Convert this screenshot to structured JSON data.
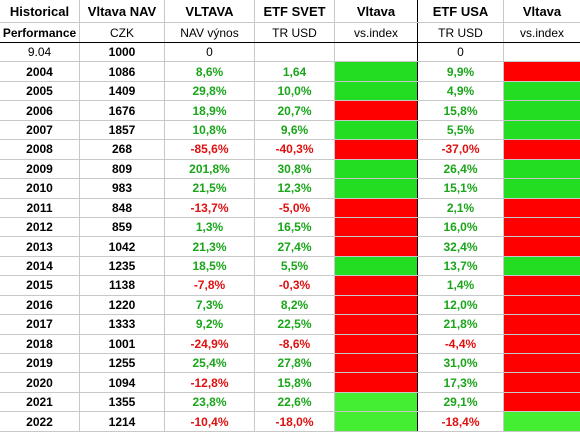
{
  "colors": {
    "positive_text": "#1aa51a",
    "negative_text": "#e01010",
    "green_fill": "#22dd22",
    "light_green_fill": "#44ee33",
    "red_fill": "#ff0000",
    "grid": "#c8c8c8"
  },
  "header": {
    "row1": [
      "Historical",
      "Vltava NAV",
      "VLTAVA",
      "ETF SVET",
      "Vltava",
      "ETF USA",
      "Vltava"
    ],
    "row2": [
      "Performance",
      "CZK",
      "NAV výnos",
      "TR USD",
      "vs.index",
      "TR USD",
      "vs.index"
    ]
  },
  "base_row": {
    "date": "9.04",
    "nav": "1000",
    "vltava": "0",
    "etf_svet": "",
    "etf_usa": "0"
  },
  "rows": [
    {
      "year": "2004",
      "nav": "1086",
      "vltava": "8,6%",
      "vltava_sign": "pos",
      "svet": "1,64",
      "svet_sign": "pos",
      "vs_svet": "green",
      "usa": "9,9%",
      "usa_sign": "pos",
      "vs_usa": "red"
    },
    {
      "year": "2005",
      "nav": "1409",
      "vltava": "29,8%",
      "vltava_sign": "pos",
      "svet": "10,0%",
      "svet_sign": "pos",
      "vs_svet": "green",
      "usa": "4,9%",
      "usa_sign": "pos",
      "vs_usa": "green"
    },
    {
      "year": "2006",
      "nav": "1676",
      "vltava": "18,9%",
      "vltava_sign": "pos",
      "svet": "20,7%",
      "svet_sign": "pos",
      "vs_svet": "red",
      "usa": "15,8%",
      "usa_sign": "pos",
      "vs_usa": "green"
    },
    {
      "year": "2007",
      "nav": "1857",
      "vltava": "10,8%",
      "vltava_sign": "pos",
      "svet": "9,6%",
      "svet_sign": "pos",
      "vs_svet": "green",
      "usa": "5,5%",
      "usa_sign": "pos",
      "vs_usa": "green"
    },
    {
      "year": "2008",
      "nav": "268",
      "vltava": "-85,6%",
      "vltava_sign": "neg",
      "svet": "-40,3%",
      "svet_sign": "neg",
      "vs_svet": "red",
      "usa": "-37,0%",
      "usa_sign": "neg",
      "vs_usa": "red"
    },
    {
      "year": "2009",
      "nav": "809",
      "vltava": "201,8%",
      "vltava_sign": "pos",
      "svet": "30,8%",
      "svet_sign": "pos",
      "vs_svet": "green",
      "usa": "26,4%",
      "usa_sign": "pos",
      "vs_usa": "green"
    },
    {
      "year": "2010",
      "nav": "983",
      "vltava": "21,5%",
      "vltava_sign": "pos",
      "svet": "12,3%",
      "svet_sign": "pos",
      "vs_svet": "green",
      "usa": "15,1%",
      "usa_sign": "pos",
      "vs_usa": "green"
    },
    {
      "year": "2011",
      "nav": "848",
      "vltava": "-13,7%",
      "vltava_sign": "neg",
      "svet": "-5,0%",
      "svet_sign": "neg",
      "vs_svet": "red",
      "usa": "2,1%",
      "usa_sign": "pos",
      "vs_usa": "red"
    },
    {
      "year": "2012",
      "nav": "859",
      "vltava": "1,3%",
      "vltava_sign": "pos",
      "svet": "16,5%",
      "svet_sign": "pos",
      "vs_svet": "red",
      "usa": "16,0%",
      "usa_sign": "pos",
      "vs_usa": "red"
    },
    {
      "year": "2013",
      "nav": "1042",
      "vltava": "21,3%",
      "vltava_sign": "pos",
      "svet": "27,4%",
      "svet_sign": "pos",
      "vs_svet": "red",
      "usa": "32,4%",
      "usa_sign": "pos",
      "vs_usa": "red"
    },
    {
      "year": "2014",
      "nav": "1235",
      "vltava": "18,5%",
      "vltava_sign": "pos",
      "svet": "5,5%",
      "svet_sign": "pos",
      "vs_svet": "green",
      "usa": "13,7%",
      "usa_sign": "pos",
      "vs_usa": "green"
    },
    {
      "year": "2015",
      "nav": "1138",
      "vltava": "-7,8%",
      "vltava_sign": "neg",
      "svet": "-0,3%",
      "svet_sign": "neg",
      "vs_svet": "red",
      "usa": "1,4%",
      "usa_sign": "pos",
      "vs_usa": "red"
    },
    {
      "year": "2016",
      "nav": "1220",
      "vltava": "7,3%",
      "vltava_sign": "pos",
      "svet": "8,2%",
      "svet_sign": "pos",
      "vs_svet": "red",
      "usa": "12,0%",
      "usa_sign": "pos",
      "vs_usa": "red"
    },
    {
      "year": "2017",
      "nav": "1333",
      "vltava": "9,2%",
      "vltava_sign": "pos",
      "svet": "22,5%",
      "svet_sign": "pos",
      "vs_svet": "red",
      "usa": "21,8%",
      "usa_sign": "pos",
      "vs_usa": "red"
    },
    {
      "year": "2018",
      "nav": "1001",
      "vltava": "-24,9%",
      "vltava_sign": "neg",
      "svet": "-8,6%",
      "svet_sign": "neg",
      "vs_svet": "red",
      "usa": "-4,4%",
      "usa_sign": "neg",
      "vs_usa": "red"
    },
    {
      "year": "2019",
      "nav": "1255",
      "vltava": "25,4%",
      "vltava_sign": "pos",
      "svet": "27,8%",
      "svet_sign": "pos",
      "vs_svet": "red",
      "usa": "31,0%",
      "usa_sign": "pos",
      "vs_usa": "red"
    },
    {
      "year": "2020",
      "nav": "1094",
      "vltava": "-12,8%",
      "vltava_sign": "neg",
      "svet": "15,8%",
      "svet_sign": "pos",
      "vs_svet": "red",
      "usa": "17,3%",
      "usa_sign": "pos",
      "vs_usa": "red"
    },
    {
      "year": "2021",
      "nav": "1355",
      "vltava": "23,8%",
      "vltava_sign": "pos",
      "svet": "22,6%",
      "svet_sign": "pos",
      "vs_svet": "light_green",
      "usa": "29,1%",
      "usa_sign": "pos",
      "vs_usa": "red"
    },
    {
      "year": "2022",
      "nav": "1214",
      "vltava": "-10,4%",
      "vltava_sign": "neg",
      "svet": "-18,0%",
      "svet_sign": "neg",
      "vs_svet": "light_green",
      "usa": "-18,4%",
      "usa_sign": "neg",
      "vs_usa": "light_green"
    }
  ]
}
